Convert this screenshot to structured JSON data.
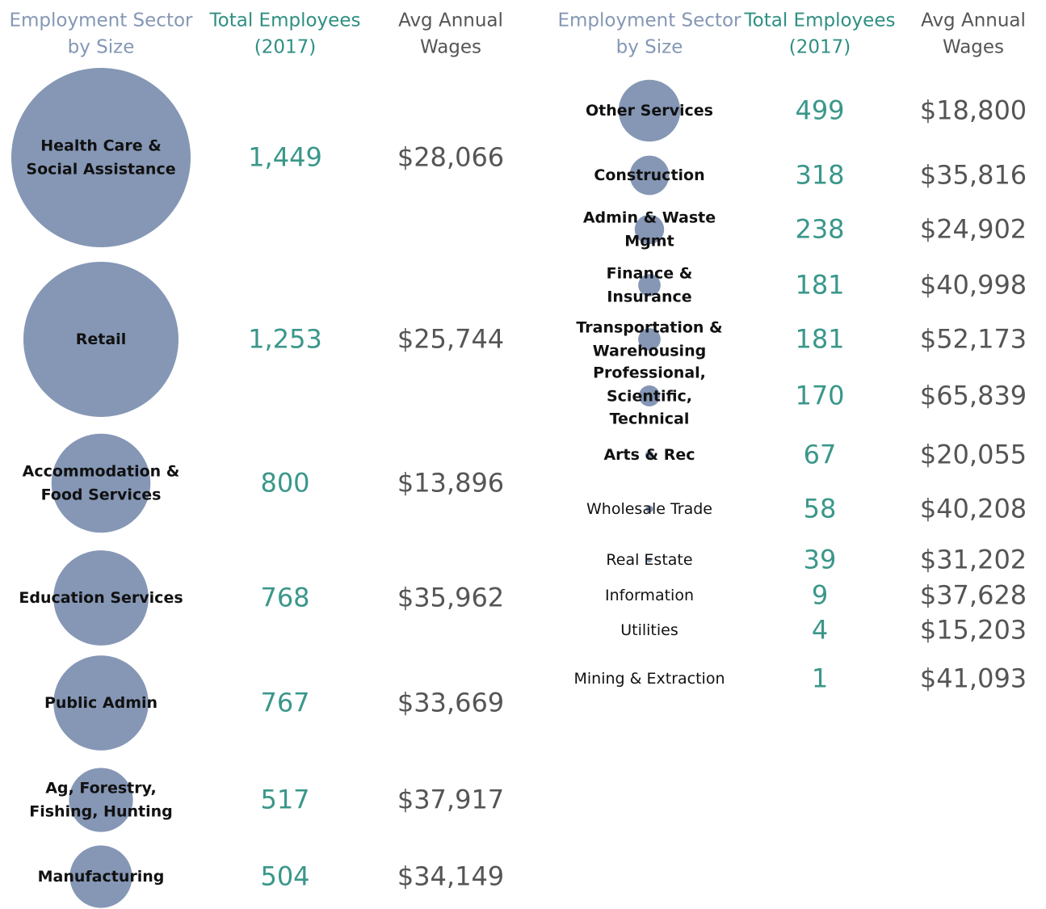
{
  "chart_data": [
    {
      "type": "bubble_table",
      "columns": [
        "Employment Sector by Size",
        "Total Employees (2017)",
        "Avg Annual Wages"
      ],
      "categories": [
        "Health Care & Social Assistance",
        "Retail",
        "Accommodation & Food Services",
        "Education Services",
        "Public Admin",
        "Ag, Forestry, Fishing, Hunting",
        "Manufacturing"
      ],
      "values": [
        1449,
        1253,
        800,
        768,
        767,
        517,
        504
      ],
      "value_labels": [
        "1,449",
        "1,253",
        "800",
        "768",
        "767",
        "517",
        "504"
      ],
      "wages": [
        "$28,066",
        "$25,744",
        "$13,896",
        "$35,962",
        "$33,669",
        "$37,917",
        "$34,149"
      ],
      "color": "#8597b5"
    },
    {
      "type": "bubble_table",
      "columns": [
        "Employment Sector by Size",
        "Total Employees (2017)",
        "Avg Annual Wages"
      ],
      "categories": [
        "Other Services",
        "Construction",
        "Admin & Waste Mgmt",
        "Finance & Insurance",
        "Transportation & Warehousing",
        "Professional, Scientific, Technical",
        "Arts & Rec",
        "Wholesale Trade",
        "Real Estate",
        "Information",
        "Utilities",
        "Mining & Extraction"
      ],
      "values": [
        499,
        318,
        238,
        181,
        181,
        170,
        67,
        58,
        39,
        9,
        4,
        1
      ],
      "value_labels": [
        "499",
        "318",
        "238",
        "181",
        "181",
        "170",
        "67",
        "58",
        "39",
        "9",
        "4",
        "1"
      ],
      "wages": [
        "$18,800",
        "$35,816",
        "$24,902",
        "$40,998",
        "$52,173",
        "$65,839",
        "$20,055",
        "$40,208",
        "$31,202",
        "$37,628",
        "$15,203",
        "$41,093"
      ],
      "color": "#8597b5"
    }
  ]
}
